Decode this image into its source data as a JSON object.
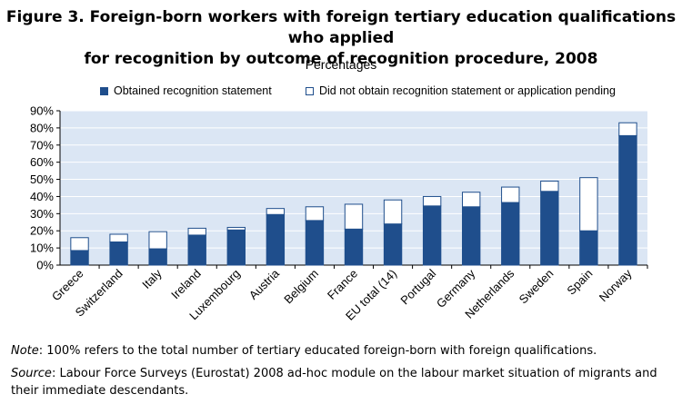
{
  "figure": {
    "title_line1": "Figure 3. Foreign-born workers with foreign tertiary education qualifications who applied",
    "title_line2": "for recognition by outcome of recognition procedure, 2008",
    "subtitle": "Percentages"
  },
  "notes": {
    "note_label": "Note",
    "note_text": ": 100% refers to the total number of tertiary educated foreign-born with foreign qualifications.",
    "source_label": "Source",
    "source_text": ": Labour Force Surveys (Eurostat) 2008 ad-hoc module on the labour market situation of migrants and their immediate descendants."
  },
  "colors": {
    "dark": "#1f4e8c",
    "plot_bg": "#dbe6f4",
    "grid": "#ffffff"
  },
  "chart_data": {
    "type": "bar",
    "stacked": true,
    "title": "",
    "xlabel": "",
    "ylabel": "",
    "ylim": [
      0,
      90
    ],
    "yticks": [
      0,
      10,
      20,
      30,
      40,
      50,
      60,
      70,
      80,
      90
    ],
    "ytick_labels": [
      "0%",
      "10%",
      "20%",
      "30%",
      "40%",
      "50%",
      "60%",
      "70%",
      "80%",
      "90%"
    ],
    "grid": true,
    "legend_position": "top",
    "categories": [
      "Greece",
      "Switzerland",
      "Italy",
      "Ireland",
      "Luxembourg",
      "Austria",
      "Belgium",
      "France",
      "EU total (14)",
      "Portugal",
      "Germany",
      "Netherlands",
      "Sweden",
      "Spain",
      "Norway"
    ],
    "series": [
      {
        "name": "Obtained recognition statement",
        "color": "#1f4e8c",
        "values": [
          8.5,
          13.5,
          9.5,
          17.5,
          20.5,
          29.5,
          26,
          21,
          24,
          34.5,
          34,
          36.5,
          43,
          20,
          75.5
        ]
      },
      {
        "name": "Did not obtain recognition statement or application pending",
        "color": "#ffffff",
        "values": [
          7.5,
          4.5,
          10,
          4,
          1.5,
          3.5,
          8,
          14.5,
          14,
          5.5,
          8.5,
          9,
          6,
          31,
          7.5
        ]
      }
    ]
  }
}
